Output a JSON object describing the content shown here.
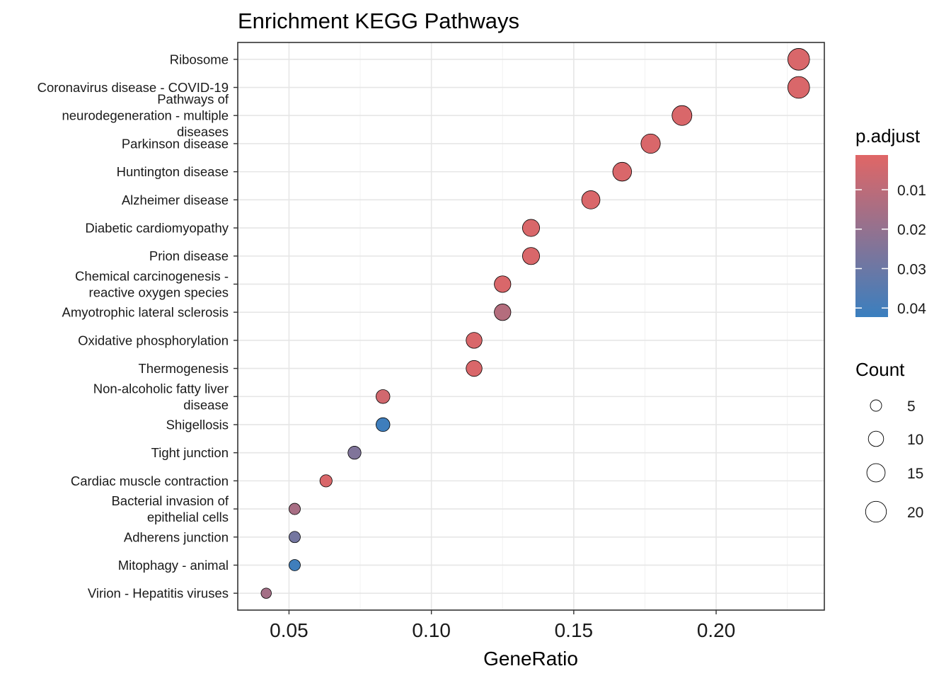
{
  "chart_data": {
    "type": "scatter",
    "title": "Enrichment KEGG Pathways",
    "xlabel": "GeneRatio",
    "ylabel": "",
    "xlim": [
      0.032,
      0.238
    ],
    "x_ticks": [
      0.05,
      0.1,
      0.15,
      0.2
    ],
    "x_tick_labels": [
      "0.05",
      "0.10",
      "0.15",
      "0.20"
    ],
    "grid": true,
    "categories": [
      "Ribosome",
      "Coronavirus disease - COVID-19",
      "Pathways of\nneurodegeneration - multiple\ndiseases",
      "Parkinson disease",
      "Huntington disease",
      "Alzheimer disease",
      "Diabetic cardiomyopathy",
      "Prion disease",
      "Chemical carcinogenesis -\nreactive oxygen species",
      "Amyotrophic lateral sclerosis",
      "Oxidative phosphorylation",
      "Thermogenesis",
      "Non-alcoholic fatty liver\ndisease",
      "Shigellosis",
      "Tight junction",
      "Cardiac muscle contraction",
      "Bacterial invasion of\nepithelial cells",
      "Adherens junction",
      "Mitophagy - animal",
      "Virion - Hepatitis viruses"
    ],
    "points": [
      {
        "label": "Ribosome",
        "gene_ratio": 0.229,
        "count": 22,
        "p_adjust": 0.003
      },
      {
        "label": "Coronavirus disease - COVID-19",
        "gene_ratio": 0.229,
        "count": 22,
        "p_adjust": 0.003
      },
      {
        "label": "Pathways of neurodegeneration - multiple diseases",
        "gene_ratio": 0.188,
        "count": 18,
        "p_adjust": 0.003
      },
      {
        "label": "Parkinson disease",
        "gene_ratio": 0.177,
        "count": 17,
        "p_adjust": 0.003
      },
      {
        "label": "Huntington disease",
        "gene_ratio": 0.167,
        "count": 16,
        "p_adjust": 0.003
      },
      {
        "label": "Alzheimer disease",
        "gene_ratio": 0.156,
        "count": 15,
        "p_adjust": 0.003
      },
      {
        "label": "Diabetic cardiomyopathy",
        "gene_ratio": 0.135,
        "count": 13,
        "p_adjust": 0.003
      },
      {
        "label": "Prion disease",
        "gene_ratio": 0.135,
        "count": 13,
        "p_adjust": 0.003
      },
      {
        "label": "Chemical carcinogenesis - reactive oxygen species",
        "gene_ratio": 0.125,
        "count": 12,
        "p_adjust": 0.003
      },
      {
        "label": "Amyotrophic lateral sclerosis",
        "gene_ratio": 0.125,
        "count": 12,
        "p_adjust": 0.012
      },
      {
        "label": "Oxidative phosphorylation",
        "gene_ratio": 0.115,
        "count": 11,
        "p_adjust": 0.003
      },
      {
        "label": "Thermogenesis",
        "gene_ratio": 0.115,
        "count": 11,
        "p_adjust": 0.003
      },
      {
        "label": "Non-alcoholic fatty liver disease",
        "gene_ratio": 0.083,
        "count": 8,
        "p_adjust": 0.005
      },
      {
        "label": "Shigellosis",
        "gene_ratio": 0.083,
        "count": 8,
        "p_adjust": 0.041
      },
      {
        "label": "Tight junction",
        "gene_ratio": 0.073,
        "count": 7,
        "p_adjust": 0.025
      },
      {
        "label": "Cardiac muscle contraction",
        "gene_ratio": 0.063,
        "count": 6,
        "p_adjust": 0.003
      },
      {
        "label": "Bacterial invasion of epithelial cells",
        "gene_ratio": 0.052,
        "count": 5,
        "p_adjust": 0.015
      },
      {
        "label": "Adherens junction",
        "gene_ratio": 0.052,
        "count": 5,
        "p_adjust": 0.028
      },
      {
        "label": "Mitophagy - animal",
        "gene_ratio": 0.052,
        "count": 5,
        "p_adjust": 0.041
      },
      {
        "label": "Virion - Hepatitis viruses",
        "gene_ratio": 0.042,
        "count": 4,
        "p_adjust": 0.016
      }
    ],
    "legend_color": {
      "title": "p.adjust",
      "ticks": [
        0.01,
        0.02,
        0.03,
        0.04
      ],
      "tick_labels": [
        "0.01",
        "0.02",
        "0.03",
        "0.04"
      ],
      "range": [
        0.0012,
        0.0423
      ],
      "low_color": "#e06666",
      "high_color": "#3a7fbf",
      "placement": "right"
    },
    "legend_size": {
      "title": "Count",
      "values": [
        5,
        10,
        15,
        20
      ],
      "labels": [
        "5",
        "10",
        "15",
        "20"
      ],
      "placement": "right"
    }
  }
}
